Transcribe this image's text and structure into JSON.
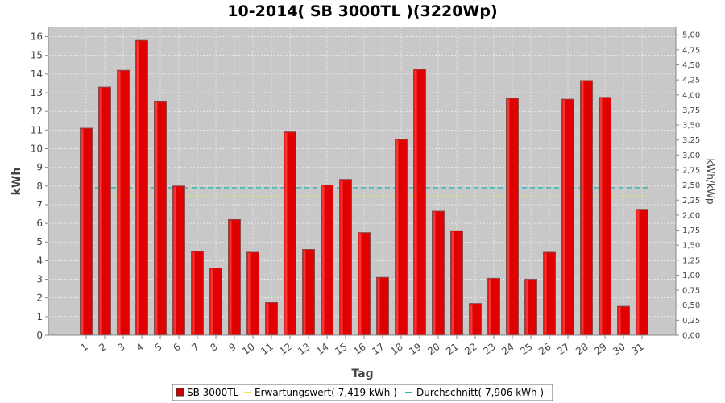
{
  "chart_data": {
    "type": "bar",
    "title": "10-2014( SB 3000TL )(3220Wp)",
    "xlabel": "Tag",
    "ylabel": "kWh",
    "ylabel_right": "kWh/kWp",
    "categories": [
      "1",
      "2",
      "3",
      "4",
      "5",
      "6",
      "7",
      "8",
      "9",
      "10",
      "11",
      "12",
      "13",
      "14",
      "15",
      "16",
      "17",
      "18",
      "19",
      "20",
      "21",
      "22",
      "23",
      "24",
      "25",
      "26",
      "27",
      "28",
      "29",
      "30",
      "31"
    ],
    "series": [
      {
        "name": "SB 3000TL",
        "color": "#e00000",
        "values": [
          11.1,
          13.3,
          14.2,
          15.8,
          12.55,
          8.0,
          4.5,
          3.6,
          6.2,
          4.45,
          1.75,
          10.9,
          4.6,
          8.05,
          8.35,
          5.5,
          3.1,
          10.5,
          14.25,
          6.65,
          5.6,
          1.7,
          3.05,
          12.7,
          3.0,
          4.45,
          12.65,
          13.65,
          12.75,
          1.55,
          6.75
        ]
      }
    ],
    "reference_lines": [
      {
        "name": "Erwartungswert( 7,419 kWh )",
        "value": 7.419,
        "color": "#f2e84a"
      },
      {
        "name": "Durchschnitt( 7,906 kWh )",
        "value": 7.906,
        "color": "#2ab5b5"
      }
    ],
    "ylim": [
      0,
      16.5
    ],
    "yticks": [
      0,
      1,
      2,
      3,
      4,
      5,
      6,
      7,
      8,
      9,
      10,
      11,
      12,
      13,
      14,
      15,
      16
    ],
    "y2lim": [
      0,
      5.124
    ],
    "y2ticks": [
      "0,00",
      "0,25",
      "0,50",
      "0,75",
      "1,00",
      "1,25",
      "1,50",
      "1,75",
      "2,00",
      "2,25",
      "2,50",
      "2,75",
      "3,00",
      "3,25",
      "3,50",
      "3,75",
      "4,00",
      "4,25",
      "4,50",
      "4,75",
      "5,00"
    ],
    "y2tick_values": [
      0,
      0.25,
      0.5,
      0.75,
      1.0,
      1.25,
      1.5,
      1.75,
      2.0,
      2.25,
      2.5,
      2.75,
      3.0,
      3.25,
      3.5,
      3.75,
      4.0,
      4.25,
      4.5,
      4.75,
      5.0
    ],
    "grid": true,
    "legend_position": "bottom"
  },
  "legend": {
    "items": [
      {
        "label": "SB 3000TL",
        "kind": "box",
        "color": "#cc0000"
      },
      {
        "label": "Erwartungswert( 7,419 kWh )",
        "kind": "line",
        "color": "#f2e84a"
      },
      {
        "label": "Durchschnitt( 7,906 kWh )",
        "kind": "line",
        "color": "#2ab5b5"
      }
    ]
  },
  "colors": {
    "plot_background": "#c8c8c8",
    "bar_fill": "#e00000",
    "bar_edge": "#8a4a4a",
    "grid": "#ffffff"
  }
}
